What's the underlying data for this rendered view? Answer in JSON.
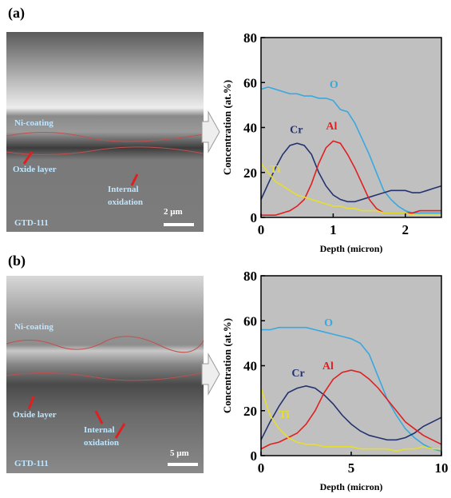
{
  "images": [
    {
      "label": "(a)",
      "coating": "Ni-coating",
      "oxide": "Oxide layer",
      "internal": [
        "Internal",
        "oxidation"
      ],
      "substrate": "GTD-111",
      "scale": "2 μm"
    },
    {
      "label": "(b)",
      "coating": "Ni-coating",
      "oxide": "Oxide layer",
      "internal": [
        "Internal",
        "oxidation"
      ],
      "substrate": "GTD-111",
      "scale": "5 μm"
    }
  ],
  "chart_data": [
    {
      "type": "line",
      "xlabel": "Depth (micron)",
      "ylabel": "Concentration (at.%)",
      "x": [
        0,
        0.1,
        0.2,
        0.3,
        0.4,
        0.5,
        0.6,
        0.7,
        0.8,
        0.9,
        1.0,
        1.1,
        1.2,
        1.3,
        1.4,
        1.5,
        1.6,
        1.7,
        1.8,
        1.9,
        2.0,
        2.1,
        2.2,
        2.3,
        2.4,
        2.5
      ],
      "xlim": [
        0,
        2.5
      ],
      "xticks": [
        0,
        1,
        2
      ],
      "ylim": [
        0,
        80
      ],
      "yticks": [
        0,
        20,
        40,
        60,
        80
      ],
      "series": [
        {
          "name": "O",
          "color": "#3aa8de",
          "values": [
            57,
            58,
            57,
            56,
            55,
            55,
            54,
            54,
            53,
            53,
            52,
            48,
            47,
            42,
            35,
            28,
            20,
            12,
            8,
            5,
            3,
            2,
            2,
            2,
            2,
            2
          ]
        },
        {
          "name": "Cr",
          "color": "#24336f",
          "values": [
            8,
            15,
            22,
            28,
            32,
            33,
            32,
            28,
            20,
            14,
            10,
            8,
            7,
            7,
            8,
            9,
            10,
            11,
            12,
            12,
            12,
            11,
            11,
            12,
            13,
            14
          ]
        },
        {
          "name": "Al",
          "color": "#e02020",
          "values": [
            1,
            1,
            1,
            2,
            3,
            5,
            8,
            15,
            24,
            31,
            34,
            33,
            28,
            22,
            15,
            8,
            4,
            2,
            2,
            2,
            2,
            2,
            3,
            3,
            3,
            3
          ]
        },
        {
          "name": "Ti",
          "color": "#e6de2c",
          "values": [
            24,
            20,
            16,
            14,
            12,
            10,
            9,
            8,
            7,
            6,
            5,
            5,
            4,
            4,
            3,
            3,
            3,
            2,
            2,
            2,
            2,
            1,
            1,
            1,
            1,
            1
          ]
        }
      ]
    },
    {
      "type": "line",
      "xlabel": "Depth (micron)",
      "ylabel": "Concentration (at.%)",
      "x": [
        0,
        0.5,
        1,
        1.5,
        2,
        2.5,
        3,
        3.5,
        4,
        4.5,
        5,
        5.5,
        6,
        6.5,
        7,
        7.5,
        8,
        8.5,
        9,
        9.5,
        10
      ],
      "xlim": [
        0,
        10
      ],
      "xticks": [
        0,
        5,
        10
      ],
      "ylim": [
        0,
        80
      ],
      "yticks": [
        0,
        20,
        40,
        60,
        80
      ],
      "series": [
        {
          "name": "O",
          "color": "#3aa8de",
          "values": [
            56,
            56,
            57,
            57,
            57,
            57,
            56,
            55,
            54,
            53,
            52,
            50,
            45,
            35,
            25,
            18,
            12,
            8,
            5,
            3,
            2
          ]
        },
        {
          "name": "Cr",
          "color": "#24336f",
          "values": [
            7,
            15,
            22,
            28,
            30,
            31,
            30,
            27,
            23,
            18,
            14,
            11,
            9,
            8,
            7,
            7,
            8,
            10,
            13,
            15,
            17
          ]
        },
        {
          "name": "Al",
          "color": "#e02020",
          "values": [
            3,
            5,
            6,
            8,
            10,
            14,
            20,
            28,
            34,
            37,
            38,
            37,
            34,
            30,
            25,
            20,
            15,
            12,
            9,
            7,
            5
          ]
        },
        {
          "name": "Ti",
          "color": "#e6de2c",
          "values": [
            30,
            18,
            12,
            8,
            6,
            5,
            5,
            4,
            4,
            4,
            4,
            3,
            3,
            3,
            3,
            2,
            3,
            3,
            4,
            3,
            3
          ]
        }
      ]
    }
  ]
}
